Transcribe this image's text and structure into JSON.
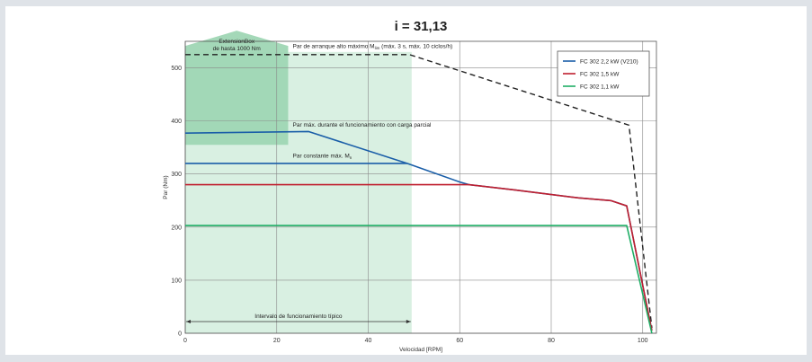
{
  "chart_data": {
    "type": "line",
    "title": "i = 31,13",
    "xlabel": "Velocidad [RPM]",
    "ylabel": "Par (Nm)",
    "xlim": [
      0,
      103
    ],
    "ylim": [
      0,
      550
    ],
    "xticks": [
      0,
      20,
      40,
      60,
      80,
      100
    ],
    "yticks": [
      0,
      100,
      200,
      300,
      400,
      500
    ],
    "grid": true,
    "legend_position": "top-right",
    "series": [
      {
        "name": "FC 302 2,2 kW (V210)",
        "color": "#1a5ea8",
        "segments": [
          {
            "x": [
              0,
              27,
              48.5,
              60,
              62,
              72,
              86,
              93,
              96.5,
              102
            ],
            "y": [
              377,
              380,
              320,
              285,
              280,
              270,
              255,
              250,
              240,
              5
            ]
          },
          {
            "x": [
              0,
              48.5
            ],
            "y": [
              320,
              320
            ]
          }
        ]
      },
      {
        "name": "FC 302 1,5 kW",
        "color": "#c01f2f",
        "segments": [
          {
            "x": [
              0,
              62,
              72,
              86,
              93,
              96.5,
              102
            ],
            "y": [
              280,
              280,
              270,
              255,
              250,
              240,
              5
            ]
          }
        ]
      },
      {
        "name": "FC 302 1,1 kW",
        "color": "#1fae66",
        "segments": [
          {
            "x": [
              0,
              96.5,
              102
            ],
            "y": [
              203,
              203,
              0
            ]
          }
        ]
      }
    ],
    "dashed_line": {
      "color": "#222222",
      "x": [
        0,
        49,
        97,
        102
      ],
      "y": [
        525,
        525,
        392,
        10
      ]
    },
    "regions": [
      {
        "label": "Intervalo de funcionamiento típico",
        "x": [
          0,
          49.5
        ],
        "y": [
          0,
          530
        ],
        "color": "#d9f0e2",
        "arrow_y": 22
      },
      {
        "label": "ExtensionBox\nde hasta 1000 Nm",
        "x": [
          0,
          22.5
        ],
        "y": [
          355,
          570
        ],
        "color": "#9fd6b4"
      }
    ],
    "annotations": [
      {
        "text": "Par de arranque alto máximo M",
        "sub": "lim",
        "suffix": " (máx. 3 s, máx. 10 ciclos/h)",
        "x": 23.5,
        "y": 537
      },
      {
        "text": "Par máx. durante el funcionamiento con carga parcial",
        "x": 23.5,
        "y": 389
      },
      {
        "text": "Par constante máx. M",
        "sub": "n",
        "suffix": "",
        "x": 23.5,
        "y": 331
      }
    ]
  }
}
